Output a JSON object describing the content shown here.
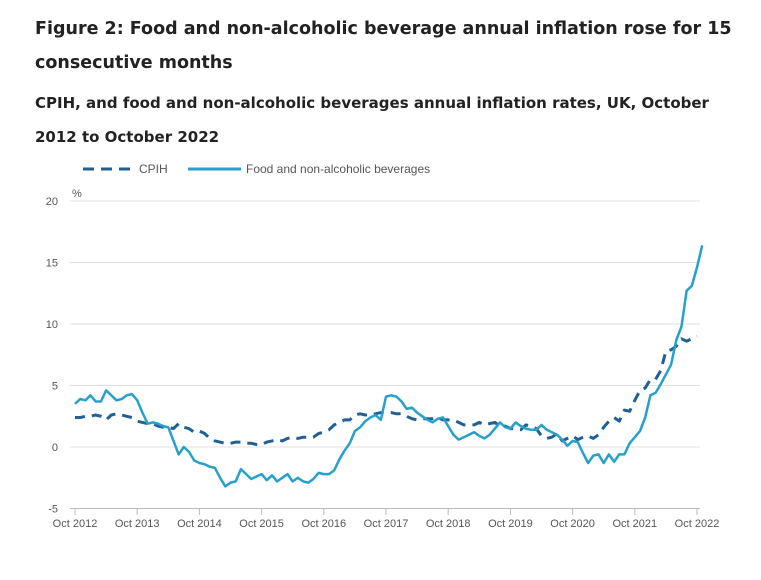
{
  "title": "Figure 2: Food and non-alcoholic beverage annual inflation rose for 15 consecutive months",
  "subtitle": "CPIH, and food and non-alcoholic beverages annual inflation rates, UK, October 2012 to October 2022",
  "chart_data": {
    "type": "line",
    "title": "CPIH, and food and non-alcoholic beverages annual inflation rates, UK, October 2012 to October 2022",
    "ylabel": "%",
    "xlabel": "",
    "ylim": [
      -5,
      20
    ],
    "yticks": [
      "20",
      "15",
      "10",
      "5",
      "0",
      "-5"
    ],
    "ytick_values": [
      20,
      15,
      10,
      5,
      0,
      -5
    ],
    "xticks": [
      "Oct 2012",
      "Oct 2013",
      "Oct 2014",
      "Oct 2015",
      "Oct 2016",
      "Oct 2017",
      "Oct 2018",
      "Oct 2019",
      "Oct 2020",
      "Oct 2021",
      "Oct 2022"
    ],
    "x_start": "Oct 2012",
    "x_end": "Oct 2022",
    "frequency": "monthly",
    "legend_position": "top-left",
    "colors": {
      "CPIH": "#206095",
      "Food": "#27a0cc"
    },
    "series": [
      {
        "name": "CPIH",
        "style": "dashed",
        "values": [
          2.4,
          2.4,
          2.5,
          2.5,
          2.6,
          2.5,
          2.2,
          2.6,
          2.7,
          2.6,
          2.5,
          2.4,
          2.1,
          2.0,
          1.9,
          1.9,
          1.7,
          1.6,
          1.6,
          1.5,
          1.9,
          1.6,
          1.5,
          1.2,
          1.3,
          1.1,
          0.7,
          0.5,
          0.4,
          0.3,
          0.3,
          0.4,
          0.4,
          0.3,
          0.3,
          0.2,
          0.2,
          0.4,
          0.5,
          0.6,
          0.5,
          0.7,
          0.8,
          0.7,
          0.8,
          0.8,
          0.8,
          1.1,
          1.2,
          1.4,
          1.8,
          2.0,
          2.2,
          2.2,
          2.6,
          2.7,
          2.6,
          2.6,
          2.7,
          2.8,
          2.8,
          2.8,
          2.7,
          2.7,
          2.5,
          2.3,
          2.2,
          2.3,
          2.3,
          2.3,
          2.4,
          2.2,
          2.2,
          2.2,
          2.0,
          1.8,
          1.8,
          1.8,
          2.0,
          1.8,
          1.9,
          2.0,
          1.7,
          1.7,
          1.5,
          1.5,
          1.4,
          1.8,
          1.7,
          1.5,
          0.9,
          0.7,
          0.8,
          1.1,
          0.5,
          0.7,
          0.9,
          0.6,
          0.8,
          0.9,
          0.7,
          1.0,
          1.6,
          2.1,
          2.4,
          2.1,
          3.0,
          2.9,
          3.8,
          4.6,
          4.8,
          5.5,
          5.5,
          6.2,
          7.8,
          7.9,
          8.2,
          8.8,
          8.6,
          8.8,
          9.0
        ]
      },
      {
        "name": "Food and non-alcoholic beverages",
        "style": "solid",
        "values": [
          3.5,
          3.9,
          3.8,
          4.2,
          3.7,
          3.7,
          4.6,
          4.2,
          3.8,
          3.9,
          4.2,
          4.3,
          3.8,
          2.8,
          1.9,
          2.0,
          1.9,
          1.7,
          1.6,
          0.5,
          -0.6,
          0.0,
          -0.4,
          -1.1,
          -1.3,
          -1.4,
          -1.6,
          -1.7,
          -2.5,
          -3.2,
          -2.9,
          -2.8,
          -1.8,
          -2.2,
          -2.6,
          -2.4,
          -2.2,
          -2.7,
          -2.3,
          -2.8,
          -2.5,
          -2.2,
          -2.8,
          -2.5,
          -2.8,
          -2.9,
          -2.6,
          -2.1,
          -2.2,
          -2.2,
          -1.9,
          -1.0,
          -0.3,
          0.3,
          1.3,
          1.6,
          2.1,
          2.4,
          2.6,
          2.2,
          4.1,
          4.2,
          4.1,
          3.7,
          3.1,
          3.2,
          2.8,
          2.5,
          2.2,
          2.0,
          2.3,
          2.4,
          1.7,
          1.0,
          0.6,
          0.8,
          1.0,
          1.2,
          0.9,
          0.7,
          1.0,
          1.5,
          2.0,
          1.6,
          1.5,
          2.0,
          1.7,
          1.5,
          1.4,
          1.4,
          1.8,
          1.4,
          1.2,
          1.0,
          0.6,
          0.1,
          0.5,
          0.4,
          -0.5,
          -1.3,
          -0.7,
          -0.6,
          -1.3,
          -0.6,
          -1.2,
          -0.6,
          -0.6,
          0.3,
          0.8,
          1.3,
          2.4,
          4.2,
          4.4,
          5.1,
          5.9,
          6.7,
          8.7,
          9.8,
          12.7,
          13.1,
          14.6,
          16.4
        ]
      }
    ]
  }
}
